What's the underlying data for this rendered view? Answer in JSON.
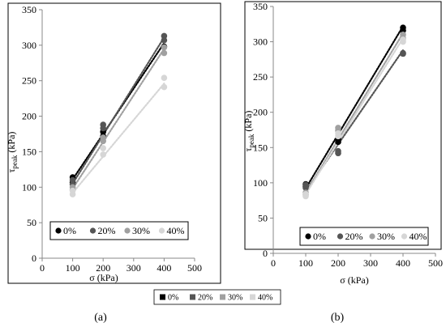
{
  "chart_data": [
    {
      "type": "scatter",
      "panel_label": "(a)",
      "xlabel": "σ (kPa)",
      "ylabel_main": "τ",
      "ylabel_sub": "peak",
      "ylabel_unit": " (kPa)",
      "xlim": [
        0,
        500
      ],
      "ylim": [
        0,
        350
      ],
      "xticks": [
        0,
        100,
        200,
        300,
        400,
        500
      ],
      "yticks": [
        0,
        50,
        100,
        150,
        200,
        250,
        300,
        350
      ],
      "grid": false,
      "legend_position": "bottom-left",
      "series": [
        {
          "name": "0%",
          "color": "#000000",
          "points": [
            [
              100,
              114
            ],
            [
              100,
              107
            ],
            [
              200,
              178
            ],
            [
              200,
              172
            ],
            [
              400,
              298
            ]
          ],
          "trend": [
            [
              100,
              111
            ],
            [
              400,
              303
            ]
          ]
        },
        {
          "name": "20%",
          "color": "#555555",
          "points": [
            [
              100,
              110
            ],
            [
              100,
              104
            ],
            [
              200,
              188
            ],
            [
              200,
              183
            ],
            [
              400,
              313
            ],
            [
              400,
              307
            ]
          ],
          "trend": [
            [
              100,
              105
            ],
            [
              400,
              311
            ]
          ]
        },
        {
          "name": "30%",
          "color": "#a0a0a0",
          "points": [
            [
              100,
              100
            ],
            [
              100,
              96
            ],
            [
              200,
              170
            ],
            [
              200,
              165
            ],
            [
              400,
              297
            ],
            [
              400,
              289
            ]
          ],
          "trend": [
            [
              100,
              98
            ],
            [
              400,
              295
            ]
          ]
        },
        {
          "name": "40%",
          "color": "#d6d6d6",
          "points": [
            [
              100,
              95
            ],
            [
              100,
              90
            ],
            [
              200,
              155
            ],
            [
              200,
              146
            ],
            [
              400,
              254
            ],
            [
              400,
              241
            ]
          ],
          "trend": [
            [
              100,
              92
            ],
            [
              400,
              246
            ]
          ]
        }
      ]
    },
    {
      "type": "scatter",
      "panel_label": "(b)",
      "xlabel": "σ (kPa)",
      "ylabel_main": "τ",
      "ylabel_sub": "peak",
      "ylabel_unit": " (kPa)",
      "xlim": [
        0,
        500
      ],
      "ylim": [
        0,
        350
      ],
      "xticks": [
        0,
        100,
        200,
        300,
        400,
        500
      ],
      "yticks": [
        0,
        50,
        100,
        150,
        200,
        250,
        300,
        350
      ],
      "grid": false,
      "legend_position": "bottom-left",
      "series": [
        {
          "name": "0%",
          "color": "#000000",
          "points": [
            [
              100,
              98
            ],
            [
              100,
              95
            ],
            [
              200,
              162
            ],
            [
              200,
              158
            ],
            [
              400,
              320
            ],
            [
              400,
              316
            ]
          ],
          "trend": [
            [
              100,
              92
            ],
            [
              400,
              322
            ]
          ]
        },
        {
          "name": "20%",
          "color": "#555555",
          "points": [
            [
              100,
              97
            ],
            [
              100,
              93
            ],
            [
              200,
              145
            ],
            [
              200,
              142
            ],
            [
              400,
              283
            ],
            [
              400,
              284
            ]
          ],
          "trend": [
            [
              100,
              88
            ],
            [
              400,
              288
            ]
          ]
        },
        {
          "name": "30%",
          "color": "#a0a0a0",
          "points": [
            [
              100,
              86
            ],
            [
              100,
              83
            ],
            [
              200,
              178
            ],
            [
              200,
              174
            ],
            [
              400,
              310
            ],
            [
              400,
              305
            ]
          ],
          "trend": [
            [
              100,
              86
            ],
            [
              400,
              312
            ]
          ]
        },
        {
          "name": "40%",
          "color": "#d6d6d6",
          "points": [
            [
              100,
              84
            ],
            [
              100,
              81
            ],
            [
              200,
              170
            ],
            [
              200,
              166
            ],
            [
              400,
              303
            ],
            [
              400,
              300
            ]
          ],
          "trend": [
            [
              100,
              84
            ],
            [
              400,
              305
            ]
          ]
        }
      ]
    }
  ],
  "footer_legend": {
    "items": [
      {
        "label": "0%",
        "color": "#000000"
      },
      {
        "label": "20%",
        "color": "#555555"
      },
      {
        "label": "30%",
        "color": "#a0a0a0"
      },
      {
        "label": "40%",
        "color": "#d6d6d6"
      }
    ]
  }
}
